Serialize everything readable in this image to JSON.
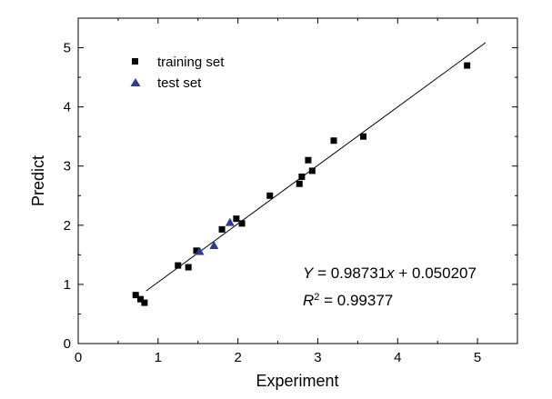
{
  "chart_data": {
    "type": "scatter",
    "xlabel": "Experiment",
    "ylabel": "Predict",
    "xlim": [
      0,
      5.5
    ],
    "ylim": [
      0,
      5.5
    ],
    "xticks": [
      0,
      1,
      2,
      3,
      4,
      5
    ],
    "yticks": [
      0,
      1,
      2,
      3,
      4,
      5
    ],
    "grid": false,
    "legend_position": "top-left",
    "series": [
      {
        "name": "training set",
        "marker": "square",
        "color": "#000000",
        "points": [
          [
            0.72,
            0.82
          ],
          [
            0.78,
            0.75
          ],
          [
            0.83,
            0.69
          ],
          [
            1.25,
            1.32
          ],
          [
            1.38,
            1.29
          ],
          [
            1.48,
            1.57
          ],
          [
            1.8,
            1.93
          ],
          [
            1.98,
            2.11
          ],
          [
            2.05,
            2.03
          ],
          [
            2.4,
            2.5
          ],
          [
            2.77,
            2.7
          ],
          [
            2.8,
            2.82
          ],
          [
            2.88,
            3.1
          ],
          [
            2.93,
            2.92
          ],
          [
            3.2,
            3.43
          ],
          [
            3.57,
            3.5
          ],
          [
            4.87,
            4.7
          ]
        ]
      },
      {
        "name": "test set",
        "marker": "triangle",
        "color": "#2e3b8f",
        "points": [
          [
            1.52,
            1.56
          ],
          [
            1.7,
            1.66
          ],
          [
            1.9,
            2.05
          ]
        ]
      }
    ],
    "fit_line": {
      "slope": 0.98731,
      "intercept": 0.050207,
      "x_range": [
        0.85,
        5.1
      ]
    },
    "equation": {
      "y_var": "Y",
      "mid": " = 0.98731",
      "x_var": "x",
      "tail": " + 0.050207",
      "r_var": "R",
      "r_exp": "2",
      "r_tail": " = 0.99377"
    }
  }
}
